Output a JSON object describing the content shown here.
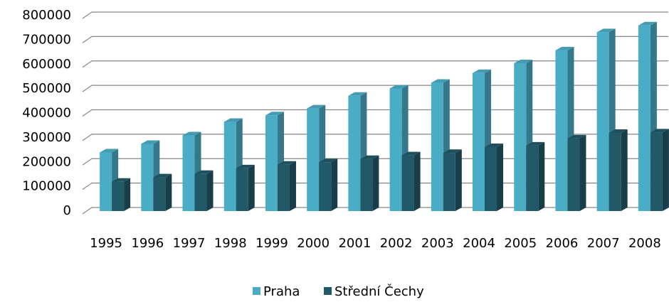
{
  "chart_data": {
    "type": "bar3d",
    "categories": [
      "1995",
      "1996",
      "1997",
      "1998",
      "1999",
      "2000",
      "2001",
      "2002",
      "2003",
      "2004",
      "2005",
      "2006",
      "2007",
      "2008"
    ],
    "series": [
      {
        "name": "Praha",
        "color": "#4bacc6",
        "values": [
          240000,
          275000,
          310000,
          365000,
          392000,
          420000,
          472000,
          502000,
          525000,
          565000,
          605000,
          658000,
          732000,
          760000
        ]
      },
      {
        "name": "Střední Čechy",
        "color": "#215968",
        "values": [
          120000,
          138000,
          152000,
          175000,
          190000,
          200000,
          213000,
          228000,
          238000,
          262000,
          268000,
          297000,
          320000,
          322000
        ]
      }
    ],
    "ylim": [
      0,
      800000
    ],
    "yticks": [
      0,
      100000,
      200000,
      300000,
      400000,
      500000,
      600000,
      700000,
      800000
    ],
    "grid": true,
    "legend": "bottom"
  }
}
